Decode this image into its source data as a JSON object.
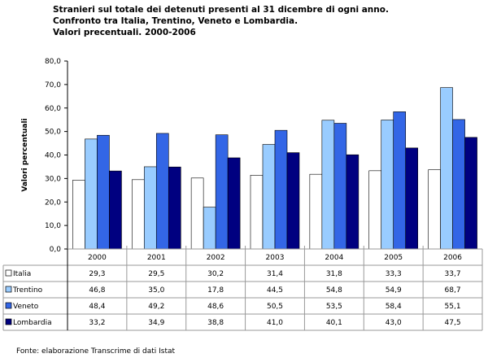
{
  "title_lines": [
    "Stranieri sul totale dei detenuti presenti al 31 dicembre di ogni anno.",
    "Confronto tra Italia, Trentino, Veneto e Lombardia.",
    "Valori precentuali. 2000-2006"
  ],
  "source": "Fonte: elaborazione Transcrime di dati Istat",
  "chart_data": {
    "type": "bar",
    "ylabel": "Valori percentuali",
    "ylim": [
      0,
      80
    ],
    "yticks": [
      "0,0",
      "10,0",
      "20,0",
      "30,0",
      "40,0",
      "50,0",
      "60,0",
      "70,0",
      "80,0"
    ],
    "grid": false,
    "legend": "data table below chart",
    "categories": [
      "2000",
      "2001",
      "2002",
      "2003",
      "2004",
      "2005",
      "2006"
    ],
    "series": [
      {
        "name": "Italia",
        "color": "#ffffff",
        "values": [
          29.3,
          29.5,
          30.2,
          31.4,
          31.8,
          33.3,
          33.7
        ],
        "labels": [
          "29,3",
          "29,5",
          "30,2",
          "31,4",
          "31,8",
          "33,3",
          "33,7"
        ]
      },
      {
        "name": "Trentino",
        "color": "#99ccff",
        "values": [
          46.8,
          35.0,
          17.8,
          44.5,
          54.8,
          54.9,
          68.7
        ],
        "labels": [
          "46,8",
          "35,0",
          "17,8",
          "44,5",
          "54,8",
          "54,9",
          "68,7"
        ]
      },
      {
        "name": "Veneto",
        "color": "#3366e6",
        "values": [
          48.4,
          49.2,
          48.6,
          50.5,
          53.5,
          58.4,
          55.1
        ],
        "labels": [
          "48,4",
          "49,2",
          "48,6",
          "50,5",
          "53,5",
          "58,4",
          "55,1"
        ]
      },
      {
        "name": "Lombardia",
        "color": "#000080",
        "values": [
          33.2,
          34.9,
          38.8,
          41.0,
          40.1,
          43.0,
          47.5
        ],
        "labels": [
          "33,2",
          "34,9",
          "38,8",
          "41,0",
          "40,1",
          "43,0",
          "47,5"
        ]
      }
    ]
  }
}
